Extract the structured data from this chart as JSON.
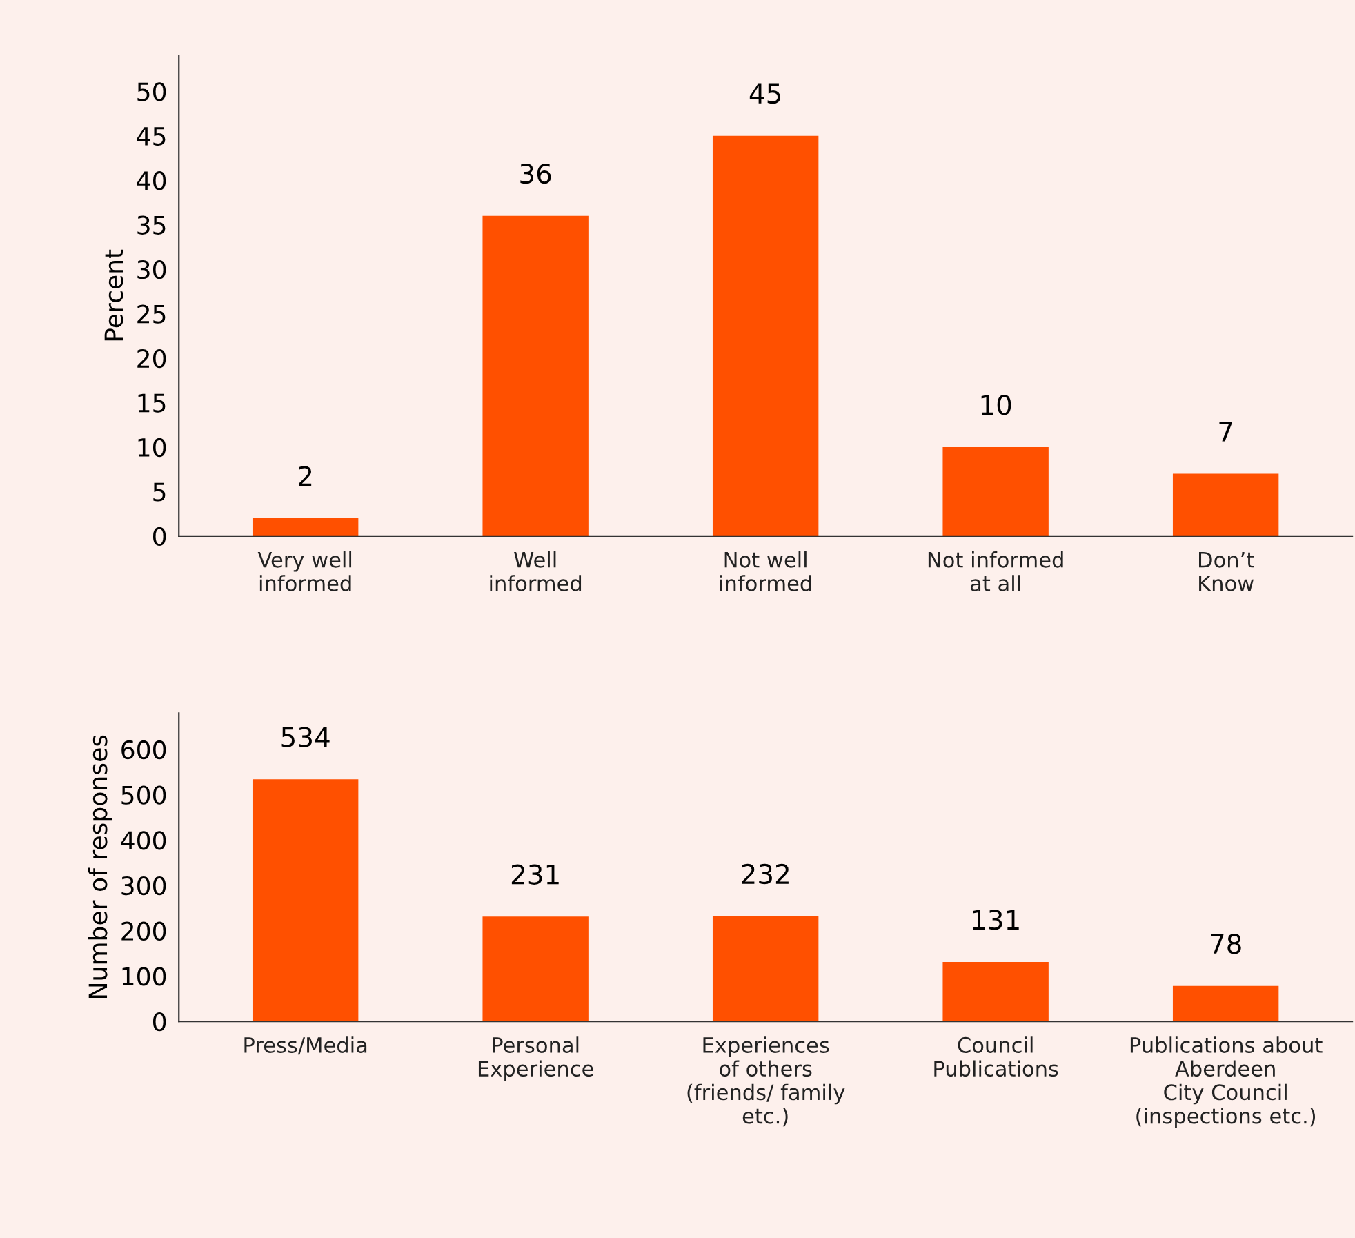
{
  "chart_data": [
    {
      "type": "bar",
      "ylabel": "Percent",
      "categories": [
        "Very well\ninformed",
        "Well\ninformed",
        "Not well\ninformed",
        "Not informed\nat all",
        "Don’t\nKnow"
      ],
      "values": [
        2,
        36,
        45,
        10,
        7
      ],
      "color": "#ff5000",
      "ylim": [
        0,
        54
      ],
      "yticks": [
        0,
        5,
        10,
        15,
        20,
        25,
        30,
        35,
        40,
        45,
        50
      ],
      "data_labels": true,
      "grid": false,
      "legend": false
    },
    {
      "type": "bar",
      "ylabel": "Number of responses",
      "categories": [
        "Press/Media",
        "Personal\nExperience",
        "Experiences\nof others\n(friends/ family\netc.)",
        "Council\nPublications",
        "Publications about\nAberdeen\nCity Council\n(inspections etc.)"
      ],
      "values": [
        534,
        231,
        232,
        131,
        78
      ],
      "color": "#ff5000",
      "ylim": [
        0,
        680
      ],
      "yticks": [
        0,
        100,
        200,
        300,
        400,
        500,
        600
      ],
      "data_labels": true,
      "grid": false,
      "legend": false
    }
  ]
}
